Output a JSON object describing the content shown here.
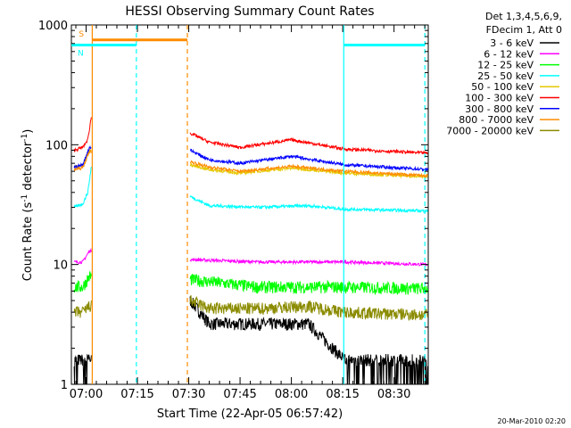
{
  "chart_data": {
    "type": "line",
    "title": "HESSI Observing Summary Count Rates",
    "xlabel": "Start Time (22-Apr-05 06:57:42)",
    "ylabel_main": "Count Rate (s",
    "ylabel_sup1": "-1",
    "ylabel_mid": " detector",
    "ylabel_sup2": "-1",
    "ylabel_end": ")",
    "ylog": true,
    "ylim": [
      1,
      1000
    ],
    "xlim_minutes": [
      415.7,
      520
    ],
    "xticks": [
      {
        "label": "07:00",
        "minutes": 420
      },
      {
        "label": "07:15",
        "minutes": 435
      },
      {
        "label": "07:30",
        "minutes": 450
      },
      {
        "label": "07:45",
        "minutes": 465
      },
      {
        "label": "08:00",
        "minutes": 480
      },
      {
        "label": "08:15",
        "minutes": 495
      },
      {
        "label": "08:30",
        "minutes": 510
      }
    ],
    "yticks": [
      {
        "label": "1",
        "value": 1
      },
      {
        "label": "10",
        "value": 10
      },
      {
        "label": "100",
        "value": 100
      },
      {
        "label": "1000",
        "value": 1000
      }
    ],
    "legend_header": [
      "Det 1,3,4,5,6,9,",
      "FDecim 1, Att 0"
    ],
    "legend_position": "right",
    "timestamp": "20-Mar-2010 02:20",
    "series": [
      {
        "name": "3 - 6 keV",
        "color": "#000000"
      },
      {
        "name": "6 - 12 keV",
        "color": "#ff00ff"
      },
      {
        "name": "12 - 25 keV",
        "color": "#00ff00"
      },
      {
        "name": "25 - 50 keV",
        "color": "#00ffff"
      },
      {
        "name": "50 - 100 keV",
        "color": "#e6c800"
      },
      {
        "name": "100 - 300 keV",
        "color": "#ff0000"
      },
      {
        "name": "300 - 800 keV",
        "color": "#0000ff"
      },
      {
        "name": "800 - 7000 keV",
        "color": "#ff8c00"
      },
      {
        "name": "7000 - 20000 keV",
        "color": "#8b8b00"
      }
    ],
    "profiles": [
      {
        "series": "3 - 6 keV",
        "t": [
          416.5,
          419,
          421,
          450.5,
          456,
          470,
          485,
          495.5,
          520
        ],
        "y": [
          1.6,
          1.6,
          1.6,
          5.0,
          3.2,
          3.2,
          3.2,
          1.6,
          1.6
        ]
      },
      {
        "series": "6 - 12 keV",
        "t": [
          416.5,
          419,
          421,
          450.5,
          470,
          485,
          495.5,
          520
        ],
        "y": [
          10.5,
          10.5,
          13,
          11,
          10.5,
          10.5,
          10.5,
          10
        ]
      },
      {
        "series": "12 - 25 keV",
        "t": [
          416.5,
          419,
          421,
          450.5,
          470,
          485,
          495.5,
          520
        ],
        "y": [
          6.5,
          6.5,
          8,
          7.5,
          6.5,
          6.5,
          6.5,
          6.3
        ]
      },
      {
        "series": "25 - 50 keV",
        "t": [
          416.5,
          419,
          420.5,
          421.5,
          450.5,
          456,
          470,
          485,
          495.5,
          520
        ],
        "y": [
          30,
          32,
          40,
          65,
          37,
          31,
          30,
          31,
          29,
          28
        ]
      },
      {
        "series": "50 - 100 keV",
        "t": [
          416.5,
          419,
          421,
          450.5,
          456,
          465,
          480,
          495.5,
          520
        ],
        "y": [
          65,
          67,
          90,
          68,
          62,
          58,
          64,
          58,
          54
        ]
      },
      {
        "series": "100 - 300 keV",
        "t": [
          416.5,
          419,
          420.5,
          421.5,
          450.5,
          456,
          465,
          480,
          495.5,
          520
        ],
        "y": [
          90,
          95,
          110,
          170,
          125,
          105,
          95,
          110,
          92,
          85
        ]
      },
      {
        "series": "300 - 800 keV",
        "t": [
          416.5,
          419,
          421,
          450.5,
          456,
          465,
          480,
          495.5,
          520
        ],
        "y": [
          65,
          68,
          95,
          90,
          75,
          70,
          80,
          68,
          62
        ]
      },
      {
        "series": "800 - 7000 keV",
        "t": [
          416.5,
          419,
          421,
          450.5,
          456,
          465,
          480,
          495.5,
          520
        ],
        "y": [
          62,
          64,
          88,
          72,
          65,
          60,
          66,
          60,
          55
        ]
      },
      {
        "series": "7000 - 20000 keV",
        "t": [
          416.5,
          419,
          421,
          450.5,
          456,
          470,
          485,
          495.5,
          520
        ],
        "y": [
          4.0,
          4.0,
          4.5,
          5.0,
          4.3,
          4.3,
          4.5,
          4.0,
          3.8
        ]
      }
    ],
    "gaps": [
      {
        "from": 421.6,
        "to": 450.4
      }
    ],
    "annotations": {
      "markers": [
        {
          "label": "S",
          "color": "#ff8c00",
          "start_minutes": 421.8,
          "end_minutes": 449.6,
          "level": 750
        },
        {
          "label": "N",
          "color": "#00ffff",
          "start_minutes": 415.7,
          "end_minutes": 434.7,
          "level": 680
        },
        {
          "label": "",
          "color": "#00ffff",
          "start_minutes": 495.3,
          "end_minutes": 519.0,
          "level": 680
        }
      ],
      "vlines": [
        {
          "minutes": 421.8,
          "color": "#ff8c00",
          "style": "solid"
        },
        {
          "minutes": 434.7,
          "color": "#00ffff",
          "style": "dashed"
        },
        {
          "minutes": 449.6,
          "color": "#ff8c00",
          "style": "dashed"
        },
        {
          "minutes": 495.3,
          "color": "#00ffff",
          "style": "solid"
        },
        {
          "minutes": 519.0,
          "color": "#00ffff",
          "style": "dashed"
        }
      ]
    }
  }
}
